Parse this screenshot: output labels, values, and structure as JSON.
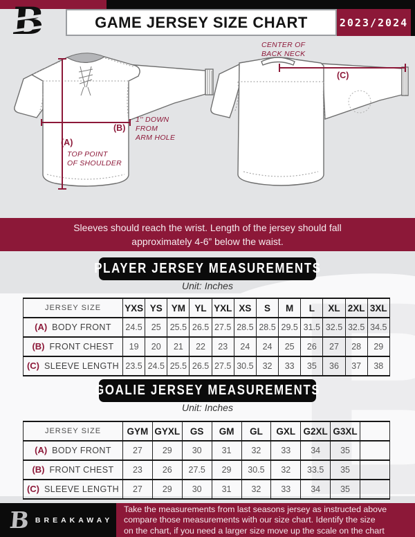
{
  "meta": {
    "title": "GAME JERSEY SIZE CHART",
    "season": "2023/2024",
    "brand": "BREAKAWAY",
    "logo_letter": "B",
    "watermark_letter": "B"
  },
  "colors": {
    "maroon": "#8C1838",
    "black": "#0B0B0B"
  },
  "diagram": {
    "front": {
      "label_a": "(A)",
      "label_b": "(B)",
      "note_a_lines": [
        "TOP POINT",
        "OF SHOULDER"
      ],
      "note_b_lines": [
        "1'' DOWN",
        "FROM",
        "ARM HOLE"
      ]
    },
    "back": {
      "label_c": "(C)",
      "note_c_lines": [
        "CENTER OF",
        "BACK NECK"
      ]
    }
  },
  "fit_note_lines": [
    "Sleeves should reach the wrist. Length of the jersey should fall",
    "approximately 4-6” below the waist."
  ],
  "player_section": {
    "heading": "PLAYER JERSEY MEASUREMENTS",
    "unit": "Unit: Inches",
    "table": {
      "corner_header": "JERSEY SIZE",
      "sizes": [
        "YXS",
        "YS",
        "YM",
        "YL",
        "YXL",
        "XS",
        "S",
        "M",
        "L",
        "XL",
        "2XL",
        "3XL"
      ],
      "rows": [
        {
          "prefix": "(A)",
          "label": "BODY FRONT",
          "values": [
            "24.5",
            "25",
            "25.5",
            "26.5",
            "27.5",
            "28.5",
            "28.5",
            "29.5",
            "31.5",
            "32.5",
            "32.5",
            "34.5"
          ]
        },
        {
          "prefix": "(B)",
          "label": "FRONT CHEST",
          "values": [
            "19",
            "20",
            "21",
            "22",
            "23",
            "24",
            "24",
            "25",
            "26",
            "27",
            "28",
            "29"
          ]
        },
        {
          "prefix": "(C)",
          "label": "SLEEVE LENGTH",
          "values": [
            "23.5",
            "24.5",
            "25.5",
            "26.5",
            "27.5",
            "30.5",
            "32",
            "33",
            "35",
            "36",
            "37",
            "38"
          ]
        }
      ]
    }
  },
  "goalie_section": {
    "heading": "GOALIE JERSEY MEASUREMENTS",
    "unit": "Unit: Inches",
    "table": {
      "corner_header": "JERSEY SIZE",
      "sizes": [
        "GYM",
        "GYXL",
        "GS",
        "GM",
        "GL",
        "GXL",
        "G2XL",
        "G3XL",
        ""
      ],
      "rows": [
        {
          "prefix": "(A)",
          "label": "BODY FRONT",
          "values": [
            "27",
            "29",
            "30",
            "31",
            "32",
            "33",
            "34",
            "35",
            ""
          ]
        },
        {
          "prefix": "(B)",
          "label": "FRONT CHEST",
          "values": [
            "23",
            "26",
            "27.5",
            "29",
            "30.5",
            "32",
            "33.5",
            "35",
            ""
          ]
        },
        {
          "prefix": "(C)",
          "label": "SLEEVE LENGTH",
          "values": [
            "27",
            "29",
            "30",
            "31",
            "32",
            "33",
            "34",
            "35",
            ""
          ]
        }
      ]
    }
  },
  "footer": {
    "note_lines": [
      "Take the measurements from last seasons jersey as instructed above",
      "compare those measurements  with our size chart. Identify the size",
      "on the chart, if you need a larger size move up the scale on the chart"
    ]
  }
}
